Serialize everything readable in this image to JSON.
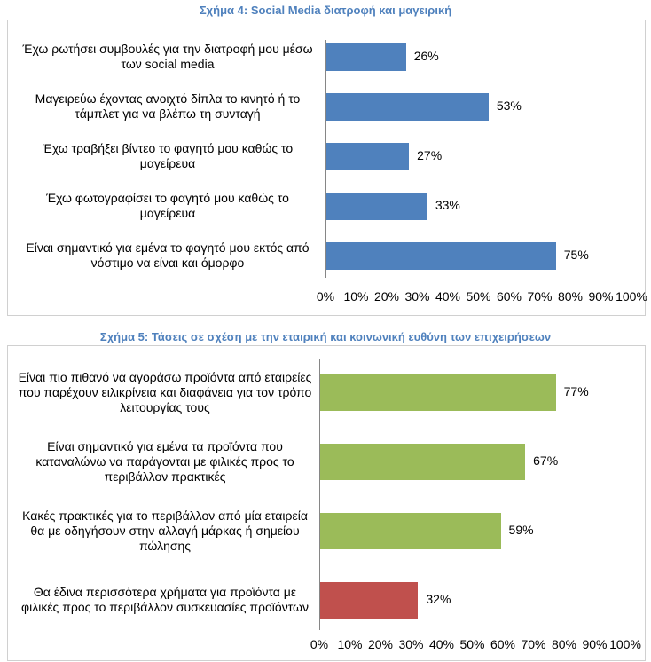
{
  "chart_data": [
    {
      "type": "bar",
      "orientation": "horizontal",
      "title": "Σχήμα 4: Social Media διατροφή και μαγειρική",
      "categories": [
        "Έχω ρωτήσει συμβουλές για την διατροφή μου μέσω των social media",
        "Μαγειρεύω έχοντας ανοιχτό δίπλα το κινητό ή το τάμπλετ για να βλέπω τη συνταγή",
        "Έχω τραβήξει βίντεο το φαγητό μου καθώς το μαγείρευα",
        "Έχω φωτογραφίσει το φαγητό μου καθώς το μαγείρευα",
        "Είναι σημαντικό για εμένα το φαγητό μου εκτός από νόστιμο να είναι και όμορφο"
      ],
      "values": [
        26,
        53,
        27,
        33,
        75
      ],
      "data_labels": [
        "26%",
        "53%",
        "27%",
        "33%",
        "75%"
      ],
      "bar_colors": [
        "#4f81bd",
        "#4f81bd",
        "#4f81bd",
        "#4f81bd",
        "#4f81bd"
      ],
      "xlim": [
        0,
        100
      ],
      "x_ticks": [
        "0%",
        "10%",
        "20%",
        "30%",
        "40%",
        "50%",
        "60%",
        "70%",
        "80%",
        "90%",
        "100%"
      ],
      "grid": false,
      "legend": "none"
    },
    {
      "type": "bar",
      "orientation": "horizontal",
      "title": "Σχήμα 5: Τάσεις σε σχέση με την εταιρική και κοινωνική ευθύνη των επιχειρήσεων",
      "categories": [
        "Είναι πιο πιθανό να αγοράσω προϊόντα από εταιρείες που παρέχουν ειλικρίνεια και διαφάνεια για τον τρόπο λειτουργίας τους",
        "Είναι σημαντικό για εμένα τα προϊόντα που καταναλώνω να παράγονται με φιλικές προς το περιβάλλον πρακτικές",
        "Κακές πρακτικές για το περιβάλλον από μία εταιρεία θα με οδηγήσουν στην αλλαγή μάρκας ή σημείου πώλησης",
        "Θα έδινα περισσότερα χρήματα για προϊόντα με φιλικές προς το περιβάλλον συσκευασίες προϊόντων"
      ],
      "values": [
        77,
        67,
        59,
        32
      ],
      "data_labels": [
        "77%",
        "67%",
        "59%",
        "32%"
      ],
      "bar_colors": [
        "#9bbb59",
        "#9bbb59",
        "#9bbb59",
        "#c0504d"
      ],
      "xlim": [
        0,
        100
      ],
      "x_ticks": [
        "0%",
        "10%",
        "20%",
        "30%",
        "40%",
        "50%",
        "60%",
        "70%",
        "80%",
        "90%",
        "100%"
      ],
      "grid": false,
      "legend": "none"
    }
  ]
}
